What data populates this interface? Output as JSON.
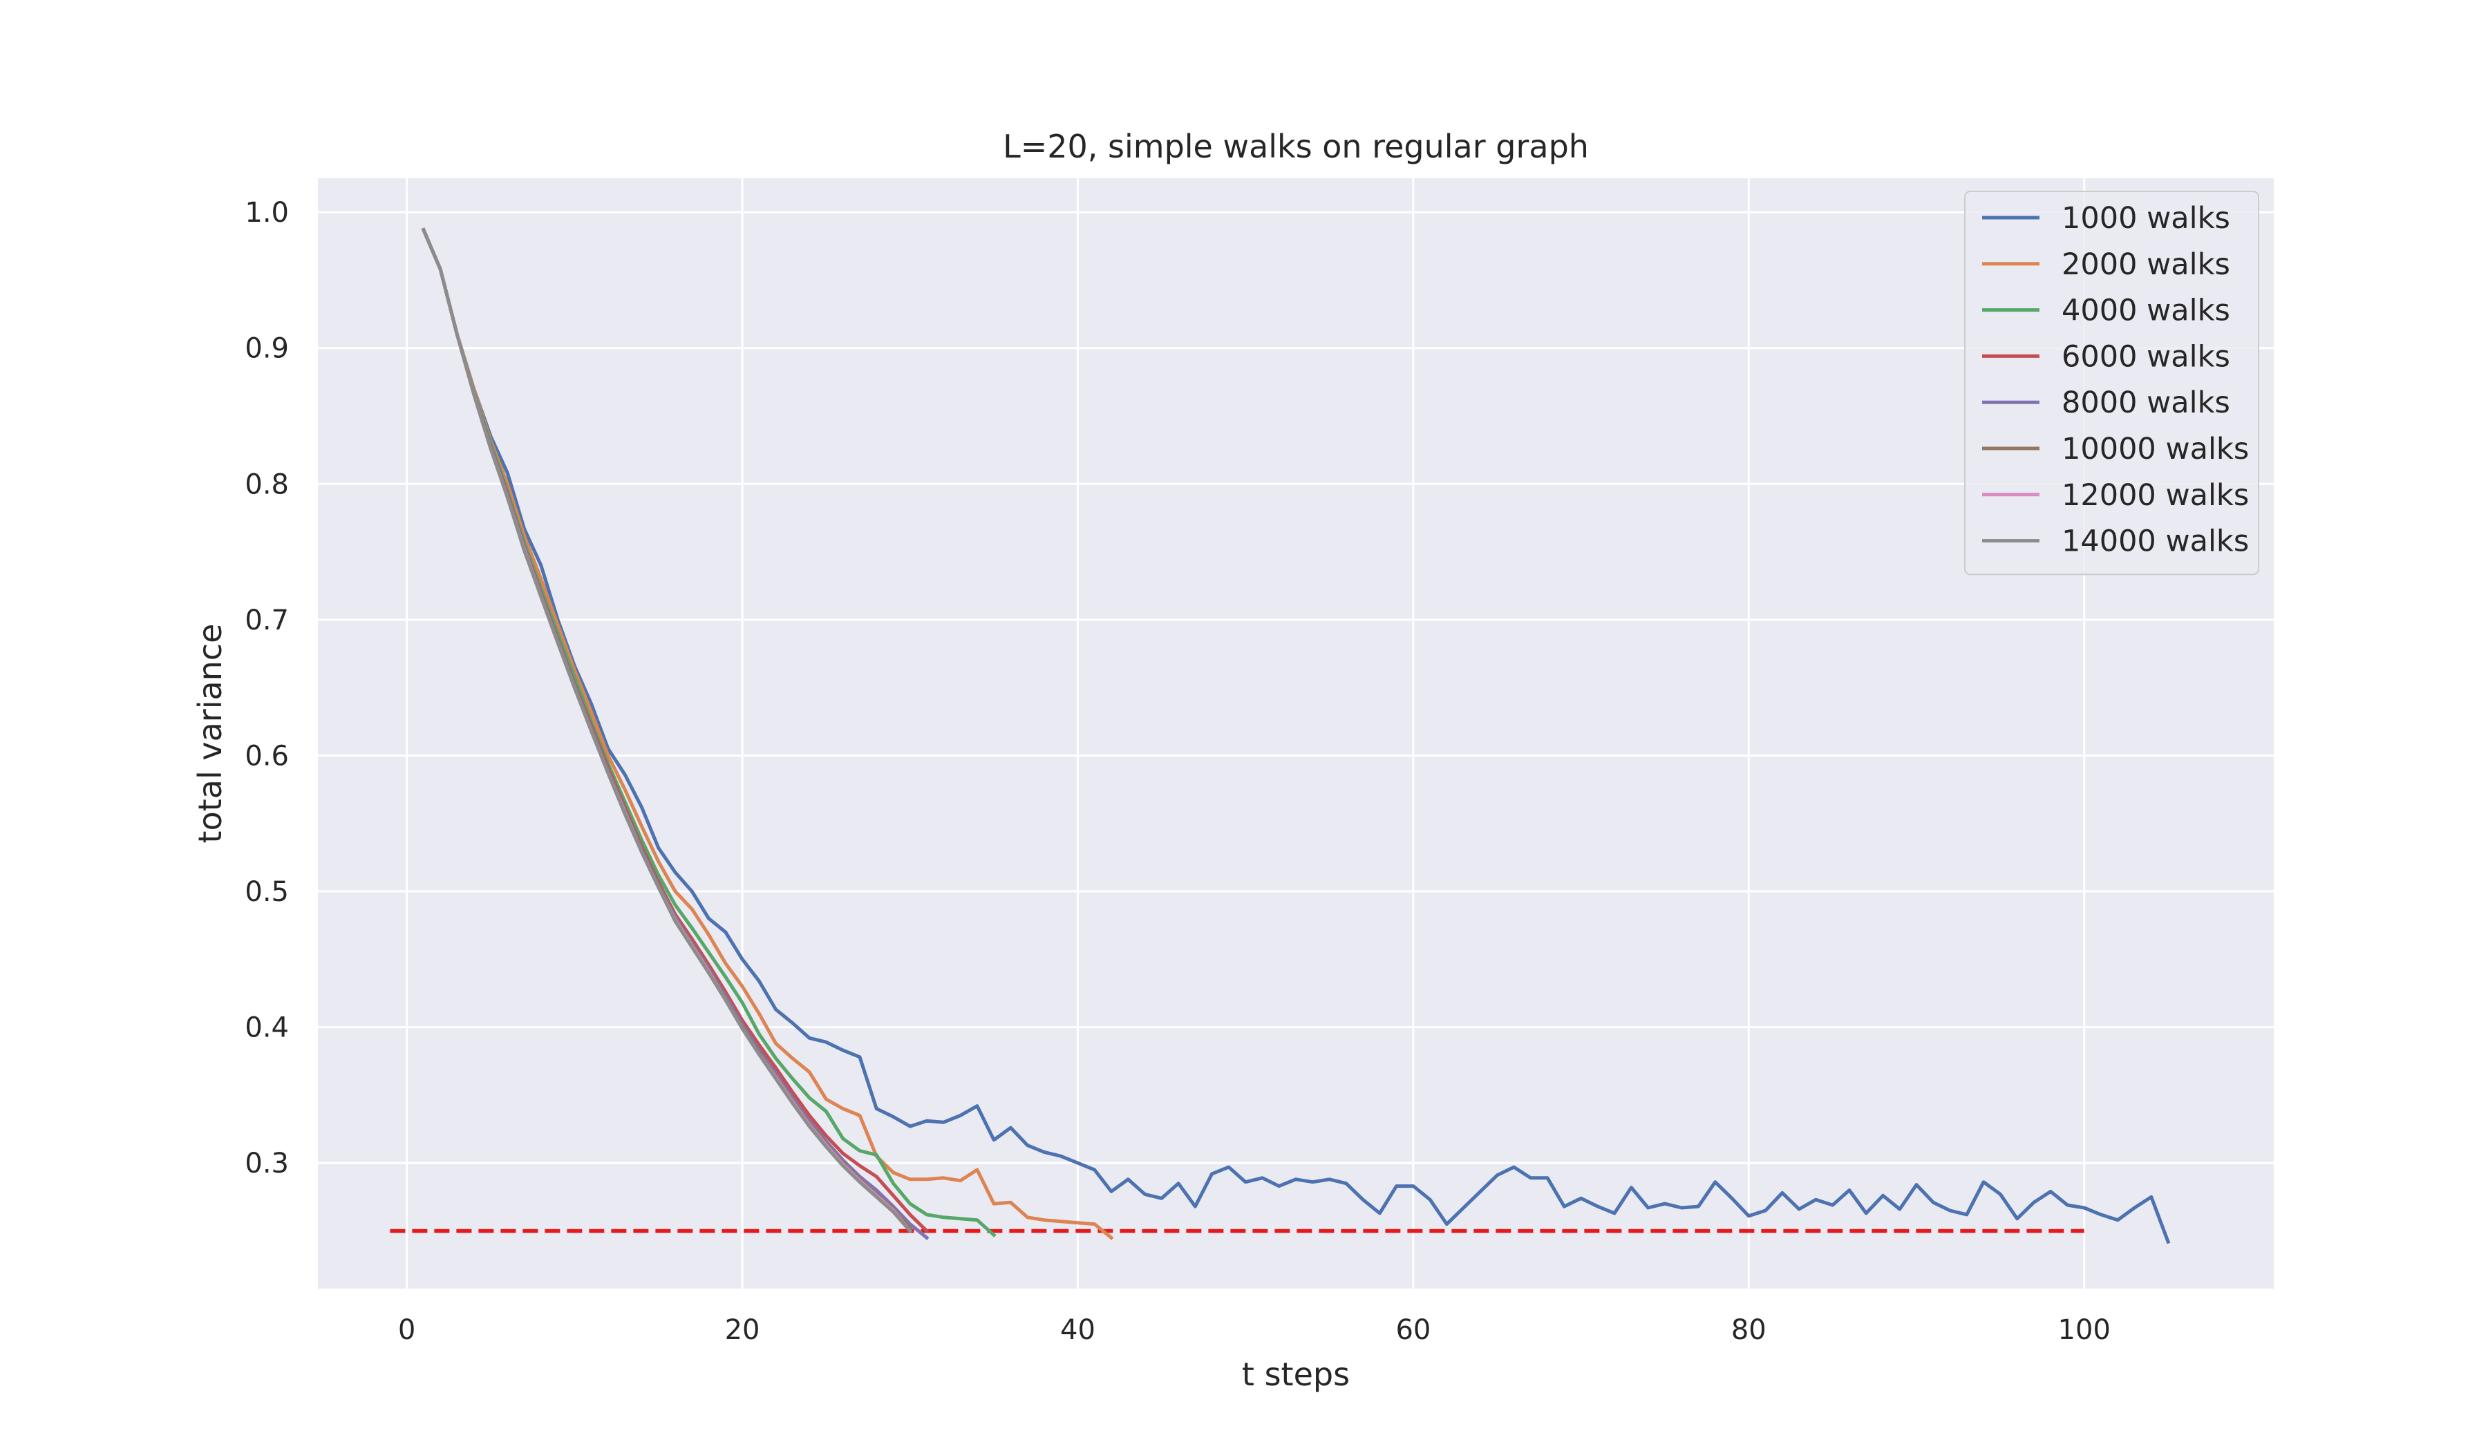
{
  "chart_data": {
    "type": "line",
    "title": "L=20, simple walks on regular graph",
    "xlabel": "t steps",
    "ylabel": "total variance",
    "xlim": [
      -5.3,
      111.3
    ],
    "ylim": [
      0.2075,
      1.025
    ],
    "xticks": [
      0,
      20,
      40,
      60,
      80,
      100
    ],
    "yticks": [
      0.3,
      0.4,
      0.5,
      0.6,
      0.7,
      0.8,
      0.9,
      1.0
    ],
    "xtick_labels": [
      "0",
      "20",
      "40",
      "60",
      "80",
      "100"
    ],
    "ytick_labels": [
      "0.3",
      "0.4",
      "0.5",
      "0.6",
      "0.7",
      "0.8",
      "0.9",
      "1.0"
    ],
    "grid": true,
    "legend_position": "top-right",
    "background": "#eaeaf2",
    "reference_line": {
      "y": 0.25,
      "x": [
        -1,
        100
      ],
      "color": "#e41a1c",
      "style": "dashed"
    },
    "series": [
      {
        "name": "1000 walks",
        "color": "#4c72b0",
        "x_start": 1,
        "values": [
          0.987,
          0.958,
          0.91,
          0.87,
          0.835,
          0.808,
          0.767,
          0.74,
          0.7,
          0.666,
          0.638,
          0.605,
          0.586,
          0.562,
          0.532,
          0.514,
          0.5,
          0.48,
          0.47,
          0.45,
          0.434,
          0.413,
          0.403,
          0.392,
          0.389,
          0.383,
          0.378,
          0.34,
          0.334,
          0.327,
          0.331,
          0.33,
          0.335,
          0.342,
          0.317,
          0.326,
          0.313,
          0.308,
          0.305,
          0.3,
          0.295,
          0.279,
          0.288,
          0.277,
          0.274,
          0.285,
          0.268,
          0.292,
          0.297,
          0.286,
          0.289,
          0.283,
          0.288,
          0.286,
          0.288,
          0.285,
          0.273,
          0.263,
          0.283,
          0.283,
          0.273,
          0.255,
          0.267,
          0.279,
          0.291,
          0.297,
          0.289,
          0.289,
          0.268,
          0.274,
          0.268,
          0.263,
          0.282,
          0.267,
          0.27,
          0.267,
          0.268,
          0.286,
          0.274,
          0.261,
          0.265,
          0.278,
          0.266,
          0.273,
          0.269,
          0.28,
          0.263,
          0.276,
          0.266,
          0.284,
          0.271,
          0.265,
          0.262,
          0.286,
          0.277,
          0.259,
          0.271,
          0.279,
          0.269,
          0.267,
          0.262,
          0.258,
          0.267,
          0.275,
          0.242
        ]
      },
      {
        "name": "2000 walks",
        "color": "#dd8452",
        "x_start": 1,
        "values": [
          0.987,
          0.958,
          0.91,
          0.87,
          0.832,
          0.8,
          0.762,
          0.73,
          0.696,
          0.663,
          0.632,
          0.6,
          0.575,
          0.548,
          0.522,
          0.5,
          0.487,
          0.468,
          0.447,
          0.43,
          0.41,
          0.388,
          0.377,
          0.367,
          0.347,
          0.34,
          0.335,
          0.305,
          0.293,
          0.288,
          0.288,
          0.289,
          0.287,
          0.295,
          0.27,
          0.271,
          0.26,
          0.258,
          0.257,
          0.256,
          0.255,
          0.245
        ]
      },
      {
        "name": "4000 walks",
        "color": "#55a868",
        "x_start": 1,
        "values": [
          0.987,
          0.958,
          0.91,
          0.868,
          0.83,
          0.795,
          0.757,
          0.723,
          0.69,
          0.658,
          0.625,
          0.594,
          0.566,
          0.538,
          0.512,
          0.49,
          0.473,
          0.455,
          0.437,
          0.418,
          0.395,
          0.377,
          0.362,
          0.348,
          0.338,
          0.318,
          0.309,
          0.306,
          0.285,
          0.27,
          0.262,
          0.26,
          0.259,
          0.258,
          0.247
        ]
      },
      {
        "name": "6000 walks",
        "color": "#c44e52",
        "x_start": 1,
        "values": [
          0.987,
          0.958,
          0.91,
          0.867,
          0.828,
          0.793,
          0.754,
          0.72,
          0.686,
          0.653,
          0.622,
          0.591,
          0.562,
          0.533,
          0.507,
          0.483,
          0.465,
          0.446,
          0.426,
          0.405,
          0.387,
          0.37,
          0.352,
          0.335,
          0.32,
          0.307,
          0.298,
          0.29,
          0.276,
          0.262,
          0.25
        ]
      },
      {
        "name": "8000 walks",
        "color": "#8172b3",
        "x_start": 1,
        "values": [
          0.987,
          0.958,
          0.91,
          0.867,
          0.827,
          0.792,
          0.753,
          0.719,
          0.685,
          0.652,
          0.62,
          0.589,
          0.56,
          0.531,
          0.505,
          0.481,
          0.462,
          0.443,
          0.423,
          0.402,
          0.383,
          0.366,
          0.348,
          0.331,
          0.316,
          0.302,
          0.29,
          0.28,
          0.268,
          0.255,
          0.245
        ]
      },
      {
        "name": "10000 walks",
        "color": "#937860",
        "x_start": 1,
        "values": [
          0.987,
          0.958,
          0.91,
          0.866,
          0.826,
          0.791,
          0.752,
          0.718,
          0.684,
          0.651,
          0.619,
          0.588,
          0.559,
          0.53,
          0.504,
          0.48,
          0.461,
          0.442,
          0.421,
          0.4,
          0.381,
          0.364,
          0.346,
          0.329,
          0.314,
          0.3,
          0.288,
          0.277,
          0.266,
          0.252
        ]
      },
      {
        "name": "12000 walks",
        "color": "#da8bc3",
        "x_start": 1,
        "values": [
          0.987,
          0.958,
          0.91,
          0.866,
          0.826,
          0.79,
          0.752,
          0.717,
          0.683,
          0.65,
          0.618,
          0.587,
          0.558,
          0.529,
          0.503,
          0.479,
          0.46,
          0.441,
          0.42,
          0.399,
          0.38,
          0.363,
          0.345,
          0.328,
          0.313,
          0.299,
          0.287,
          0.276,
          0.265,
          0.25
        ]
      },
      {
        "name": "14000 walks",
        "color": "#8c8c8c",
        "x_start": 1,
        "values": [
          0.987,
          0.958,
          0.91,
          0.866,
          0.826,
          0.79,
          0.751,
          0.717,
          0.683,
          0.65,
          0.618,
          0.587,
          0.557,
          0.529,
          0.503,
          0.478,
          0.459,
          0.44,
          0.42,
          0.399,
          0.38,
          0.362,
          0.344,
          0.327,
          0.312,
          0.298,
          0.286,
          0.275,
          0.264,
          0.25
        ]
      }
    ]
  }
}
